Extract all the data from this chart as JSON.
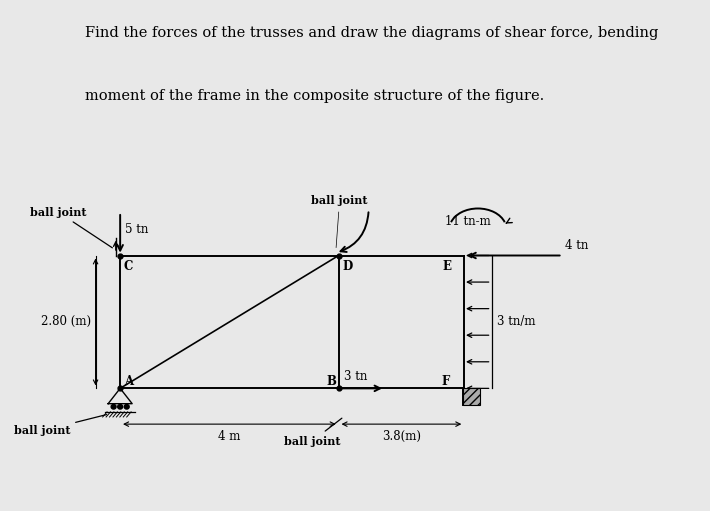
{
  "title_line1": "Find the forces of the trusses and draw the diagrams of shear force, bending",
  "title_line2": "moment of the frame in the composite structure of the figure.",
  "title_bg": "#dcdcdc",
  "fig_bg": "#e8e8e8",
  "draw_bg": "#e8e8e8",
  "dim_label_28": "2.80 (m)",
  "dim_label_4m": "4 m",
  "dim_label_38": "3.8(m)",
  "load_5tn": "5 tn",
  "load_3tn": "3 tn",
  "load_4tn": "4 tn",
  "load_11tnm": "11 tn-m",
  "load_3tnm": "3 tn/m",
  "label_A": "A",
  "label_B": "B",
  "label_C": "C",
  "label_D": "D",
  "label_E": "E",
  "label_F": "F",
  "bj1": "ball joint",
  "bj2": "ball joint",
  "bj3": "ball joint",
  "bj4": "ball joint"
}
